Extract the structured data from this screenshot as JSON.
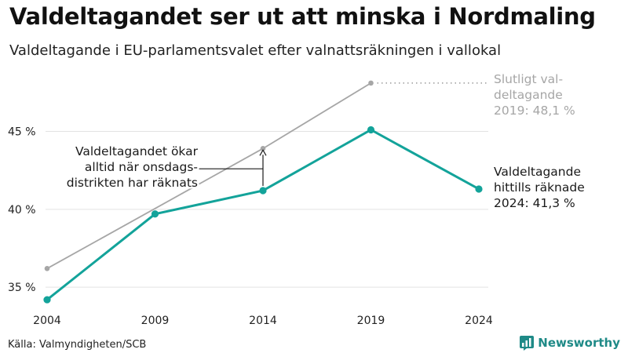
{
  "title": "Valdeltagandet ser ut att minska i Nordmaling",
  "subtitle": "Valdeltagande i EU-parlamentsvalet efter valnattsräkningen i vallokal",
  "source": "Källa: Valmyndigheten/SCB",
  "brand": "Newsworthy",
  "colors": {
    "primary": "#13a39a",
    "final": "#a6a6a6",
    "grid": "#e3e3e3",
    "annotation": "#1a1a1a",
    "brand": "#1f8a87"
  },
  "chart_data": {
    "type": "line",
    "x": [
      2004,
      2009,
      2014,
      2019,
      2024
    ],
    "x_tick_labels": [
      "2004",
      "2009",
      "2014",
      "2019",
      "2024"
    ],
    "ylim": [
      33.7,
      49.0
    ],
    "y_ticks": [
      35,
      40,
      45
    ],
    "y_tick_labels": [
      "35 %",
      "40 %",
      "45 %"
    ],
    "grid": true,
    "series": [
      {
        "key": "election_night",
        "x": [
          2004,
          2009,
          2014,
          2019,
          2024
        ],
        "values": [
          34.2,
          39.7,
          41.2,
          45.1,
          41.3
        ]
      },
      {
        "key": "final",
        "x": [
          2004,
          2014,
          2019
        ],
        "values": [
          36.2,
          43.9,
          48.1
        ]
      }
    ],
    "annotations": {
      "final_label": [
        "Slutligt val-",
        "deltagande",
        "2019: 48,1 %"
      ],
      "current_label": [
        "Valdeltagande",
        "hittills räknade",
        "2024: 41,3 %"
      ],
      "note_label": [
        "Valdeltagandet ökar",
        "alltid när onsdags-",
        "distrikten har räknats"
      ]
    }
  }
}
